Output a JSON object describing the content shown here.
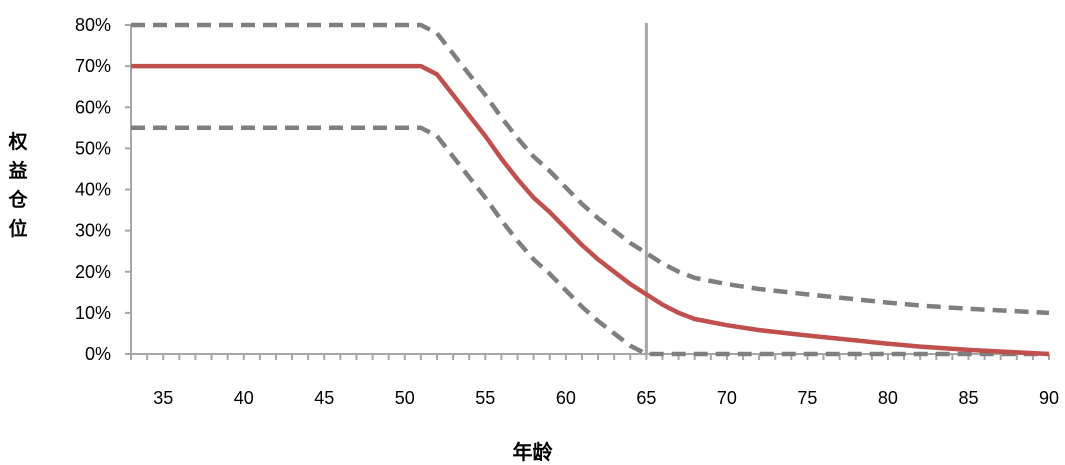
{
  "chart_data": {
    "type": "line",
    "xlabel": "年龄",
    "ylabel": "权益仓位",
    "xlim": [
      33,
      90
    ],
    "ylim": [
      0,
      80
    ],
    "x_ticks": [
      "35",
      "40",
      "45",
      "50",
      "55",
      "60",
      "65",
      "70",
      "75",
      "80",
      "85",
      "90"
    ],
    "y_ticks": [
      "0%",
      "10%",
      "20%",
      "30%",
      "40%",
      "50%",
      "60%",
      "70%",
      "80%"
    ],
    "grid": false,
    "legend": "none",
    "reference_line_x": 65,
    "series": [
      {
        "style": "solid",
        "color": "#c0504d",
        "x": [
          33,
          51,
          52,
          53,
          54,
          55,
          56,
          57,
          58,
          59,
          60,
          61,
          62,
          63,
          64,
          65,
          66,
          67,
          68,
          70,
          72,
          75,
          78,
          80,
          82,
          85,
          88,
          90
        ],
        "values": [
          70,
          70,
          68,
          63,
          58,
          53,
          47.5,
          42.5,
          38,
          34.5,
          30.5,
          26.5,
          23,
          20,
          17,
          14.5,
          12,
          10,
          8.5,
          7,
          5.8,
          4.5,
          3.3,
          2.5,
          1.8,
          1,
          0.4,
          0
        ]
      },
      {
        "style": "dashed",
        "color": "#7f7f7f",
        "x": [
          33,
          51,
          52,
          53,
          54,
          55,
          56,
          57,
          58,
          59,
          60,
          61,
          62,
          63,
          64,
          65,
          66,
          67,
          68,
          70,
          72,
          75,
          78,
          80,
          82,
          85,
          88,
          90
        ],
        "values": [
          80,
          80,
          78,
          73,
          68,
          63,
          57.5,
          52.5,
          48,
          44.5,
          40.5,
          36.5,
          33,
          30,
          27,
          24.5,
          22,
          20,
          18.5,
          17,
          15.8,
          14.5,
          13.3,
          12.5,
          11.8,
          11,
          10.4,
          10
        ]
      },
      {
        "style": "dashed",
        "color": "#7f7f7f",
        "x": [
          33,
          51,
          52,
          53,
          54,
          55,
          56,
          57,
          58,
          59,
          60,
          61,
          62,
          63,
          64,
          65,
          90
        ],
        "values": [
          55,
          55,
          53,
          48,
          43,
          38,
          32.5,
          27.5,
          23,
          19.5,
          15.5,
          11.5,
          8,
          5,
          2,
          0,
          0
        ]
      }
    ]
  }
}
